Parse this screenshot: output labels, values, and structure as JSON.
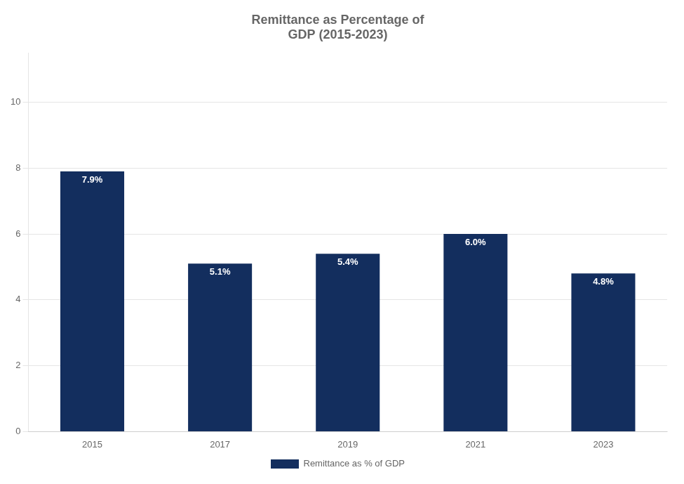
{
  "chart_data": {
    "type": "bar",
    "title": "Remittance as Percentage of\nGDP (2015-2023)",
    "categories": [
      "2015",
      "2017",
      "2019",
      "2021",
      "2023"
    ],
    "series": [
      {
        "name": "Remittance as % of GDP",
        "color": "#132e5e",
        "values": [
          7.9,
          5.1,
          5.4,
          6.0,
          4.8
        ],
        "value_labels": [
          "7.9%",
          "5.1%",
          "5.4%",
          "6.0%",
          "4.8%"
        ]
      }
    ],
    "ylim": [
      0,
      11.5
    ],
    "yticks": [
      0,
      2,
      4,
      6,
      8,
      10
    ],
    "grid": true,
    "legend": "bottom",
    "data_labels": true
  }
}
